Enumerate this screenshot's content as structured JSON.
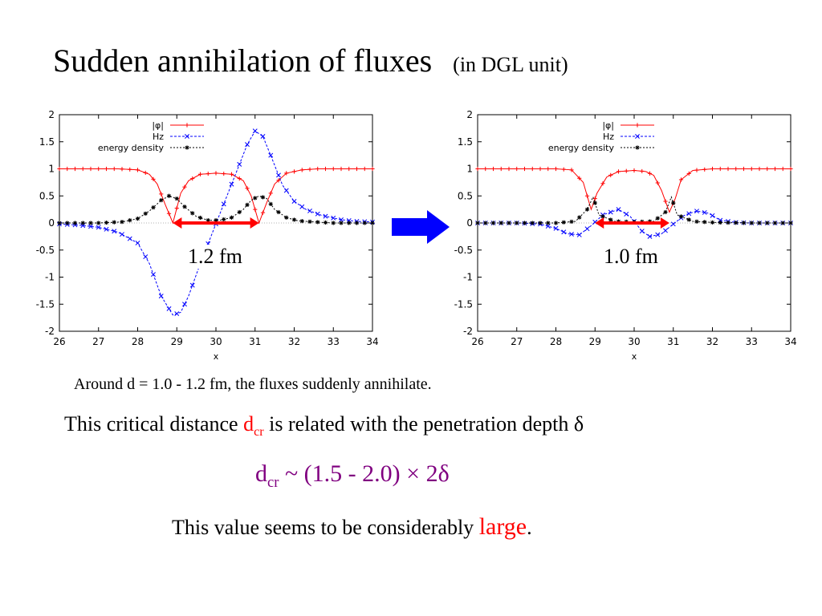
{
  "title": "Sudden annihilation of fluxes",
  "title_unit": "(in DGL unit)",
  "distance_left": "1.2 fm",
  "distance_right": "1.0 fm",
  "line1": "Around d = 1.0 - 1.2 fm, the fluxes suddenly annihilate.",
  "line2_prefix": "This critical distance ",
  "dcr_main": "d",
  "dcr_sub": "cr",
  "line2_suffix": " is related with the penetration depth δ",
  "line3_expr": " ~ (1.5 - 2.0) ",
  "line3_times": "×",
  "line3_tail": " 2δ",
  "line4_prefix": "This value seems to be considerably ",
  "line4_large": "large",
  "line4_suffix": ".",
  "colors": {
    "phi": "#ff0000",
    "hz": "#0000ff",
    "energy": "#000000",
    "arrow_blue": "#0000ff",
    "marker_red": "#ff0000",
    "emph": "#800080"
  },
  "chart_data": [
    {
      "type": "line",
      "xlabel": "x",
      "xlim": [
        26,
        34
      ],
      "ylim": [
        -2,
        2
      ],
      "xticks": [
        26,
        27,
        28,
        29,
        30,
        31,
        32,
        33,
        34
      ],
      "yticks": [
        -2,
        -1.5,
        -1,
        -0.5,
        0,
        0.5,
        1,
        1.5,
        2
      ],
      "grid": false,
      "legend_position": "top-left",
      "marker_interval": [
        28.9,
        31.1
      ],
      "series": [
        {
          "name": "|φ|",
          "x": [
            26,
            26.5,
            27,
            27.5,
            28,
            28.3,
            28.5,
            28.7,
            28.9,
            29.1,
            29.3,
            29.6,
            30,
            30.4,
            30.7,
            30.9,
            31.1,
            31.3,
            31.5,
            31.8,
            32.2,
            32.6,
            33,
            33.5,
            34
          ],
          "y": [
            1,
            1,
            1,
            1,
            0.98,
            0.9,
            0.72,
            0.35,
            0,
            0.55,
            0.78,
            0.9,
            0.92,
            0.9,
            0.78,
            0.5,
            0,
            0.38,
            0.72,
            0.92,
            0.98,
            1,
            1,
            1,
            1
          ]
        },
        {
          "name": "Hz",
          "x": [
            26,
            26.5,
            27,
            27.5,
            28,
            28.3,
            28.6,
            28.9,
            29.1,
            29.3,
            29.6,
            29.9,
            30.2,
            30.5,
            30.8,
            31,
            31.2,
            31.4,
            31.7,
            32,
            32.3,
            32.7,
            33.2,
            33.6,
            34
          ],
          "y": [
            -0.02,
            -0.04,
            -0.08,
            -0.17,
            -0.37,
            -0.75,
            -1.35,
            -1.7,
            -1.65,
            -1.35,
            -0.75,
            -0.2,
            0.35,
            0.9,
            1.45,
            1.7,
            1.6,
            1.25,
            0.7,
            0.4,
            0.25,
            0.14,
            0.06,
            0.03,
            0.02
          ]
        },
        {
          "name": "energy density",
          "x": [
            26,
            27,
            27.6,
            28,
            28.3,
            28.6,
            28.8,
            29,
            29.2,
            29.5,
            29.8,
            30.1,
            30.4,
            30.7,
            30.9,
            31.1,
            31.3,
            31.5,
            31.8,
            32.1,
            32.5,
            33,
            34
          ],
          "y": [
            0,
            0,
            0.02,
            0.08,
            0.22,
            0.42,
            0.5,
            0.45,
            0.3,
            0.12,
            0.05,
            0.05,
            0.1,
            0.25,
            0.42,
            0.5,
            0.45,
            0.25,
            0.1,
            0.04,
            0.02,
            0,
            0
          ]
        }
      ]
    },
    {
      "type": "line",
      "xlabel": "x",
      "xlim": [
        26,
        34
      ],
      "ylim": [
        -2,
        2
      ],
      "xticks": [
        26,
        27,
        28,
        29,
        30,
        31,
        32,
        33,
        34
      ],
      "yticks": [
        -2,
        -1.5,
        -1,
        -0.5,
        0,
        0.5,
        1,
        1.5,
        2
      ],
      "grid": false,
      "legend_position": "top-right",
      "marker_interval": [
        29.0,
        30.9
      ],
      "series": [
        {
          "name": "|φ|",
          "x": [
            26,
            27,
            28,
            28.4,
            28.7,
            28.9,
            29.05,
            29.3,
            29.6,
            30,
            30.3,
            30.5,
            30.7,
            30.9,
            31.05,
            31.2,
            31.5,
            32,
            33,
            34
          ],
          "y": [
            1,
            1,
            1,
            0.98,
            0.75,
            0.25,
            0.55,
            0.85,
            0.95,
            0.97,
            0.95,
            0.88,
            0.6,
            0.2,
            0.45,
            0.8,
            0.97,
            1,
            1,
            1
          ]
        },
        {
          "name": "Hz",
          "x": [
            26,
            27,
            27.6,
            28,
            28.3,
            28.6,
            28.9,
            29.2,
            29.6,
            29.9,
            30.2,
            30.4,
            30.7,
            31,
            31.3,
            31.6,
            31.9,
            32.2,
            32.6,
            33,
            34
          ],
          "y": [
            0,
            0,
            -0.02,
            -0.1,
            -0.2,
            -0.22,
            -0.05,
            0.15,
            0.25,
            0.12,
            -0.15,
            -0.25,
            -0.2,
            -0.02,
            0.15,
            0.22,
            0.18,
            0.05,
            0.01,
            0,
            0
          ]
        },
        {
          "name": "energy density",
          "x": [
            26,
            27,
            28,
            28.5,
            28.8,
            28.95,
            29.1,
            29.5,
            30,
            30.5,
            30.8,
            30.95,
            31.1,
            31.5,
            32,
            33,
            34
          ],
          "y": [
            0,
            0,
            0,
            0.03,
            0.25,
            0.48,
            0.15,
            0.03,
            0.02,
            0.03,
            0.2,
            0.48,
            0.15,
            0.03,
            0.01,
            0,
            0
          ]
        }
      ]
    }
  ]
}
